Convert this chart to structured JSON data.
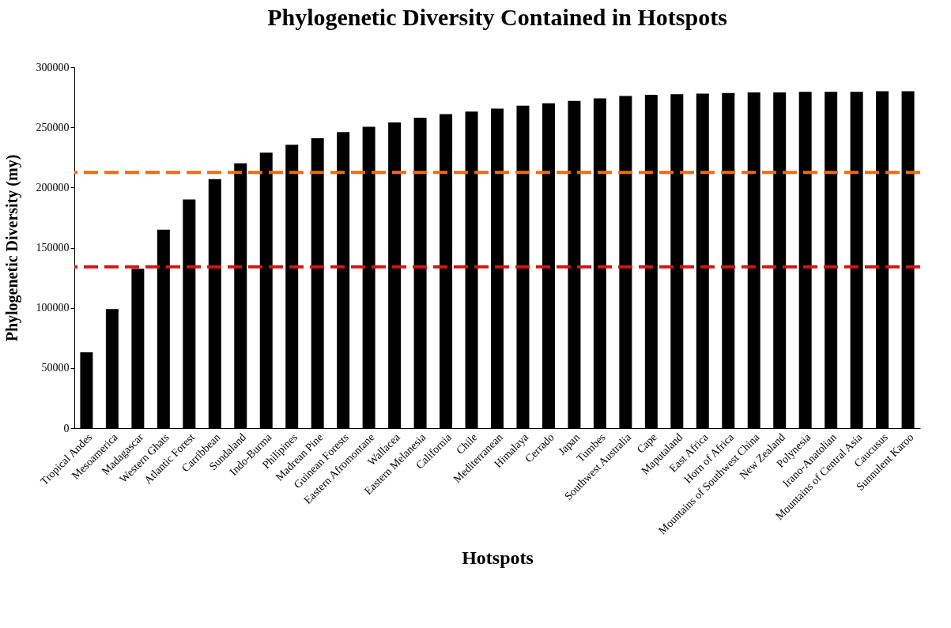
{
  "chart_data": {
    "type": "bar",
    "title": "Phylogenetic Diversity Contained in Hotspots",
    "xlabel": "Hotspots",
    "ylabel": "Phylogenetic Diversity (my)",
    "categories": [
      "Tropical Andes",
      "Mesoamerica",
      "Madagascar",
      "Western Ghats",
      "Atlantic Forest",
      "Carribbean",
      "Sundaland",
      "Indo-Burma",
      "Philipines",
      "Madrean Pine",
      "Guinean Forests",
      "Eastern Afromontane",
      "Wallacea",
      "Eastern Melanesia",
      "California",
      "Chile",
      "Mediterranean",
      "Himalaya",
      "Cerrado",
      "Japan",
      "Tumbes",
      "Southwest Australia",
      "Cape",
      "Maputaland",
      "East Africa",
      "Horn of Africa",
      "Mountains of Southwest China",
      "New Zealand",
      "Polynesia",
      "Irano-Anatolian",
      "Mountains of Central Asia",
      "Caucusus",
      "Sunnulent Karoo"
    ],
    "values": [
      63000,
      99000,
      132500,
      165000,
      190000,
      207000,
      220000,
      229000,
      235500,
      241000,
      246000,
      250500,
      254000,
      258000,
      261000,
      263000,
      265500,
      268000,
      270000,
      272000,
      274000,
      276000,
      277000,
      277500,
      278000,
      278500,
      279000,
      279000,
      279500,
      279500,
      279500,
      280000,
      280000
    ],
    "color": "#000000",
    "ylim": [
      0,
      300000
    ],
    "yticks": [
      0,
      50000,
      100000,
      150000,
      200000,
      250000,
      300000
    ],
    "ref_lines": [
      {
        "axis": "y",
        "value": 212500,
        "color": "#ff6600",
        "line_style": "dashed"
      },
      {
        "axis": "y",
        "value": 134000,
        "color": "#dd1111",
        "line_style": "dashed"
      }
    ],
    "grid": false
  }
}
